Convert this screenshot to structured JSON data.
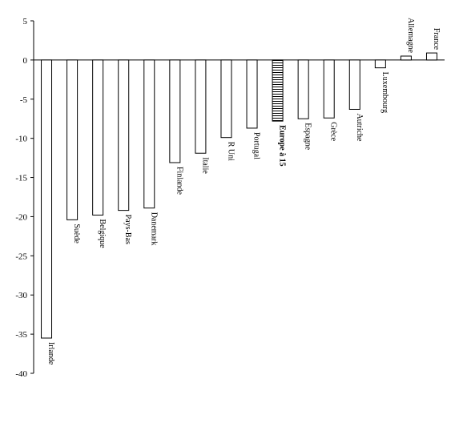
{
  "chart_data": {
    "type": "bar",
    "title": "",
    "xlabel": "",
    "ylabel": "",
    "ylim": [
      -40,
      5
    ],
    "yticks": [
      "5",
      "0",
      "-5",
      "-10",
      "-15",
      "-20",
      "-25",
      "-30",
      "-35",
      "-40"
    ],
    "grid": false,
    "legend": "none",
    "categories": [
      "Irlande",
      "Suède",
      "Belgique",
      "Pays-Bas",
      "Danemark",
      "Finlande",
      "Italie",
      "R Uni",
      "Portugal",
      "Europe à 15",
      "Espagne",
      "Grèce",
      "Autriche",
      "Luxembourg",
      "Allemagne",
      "France"
    ],
    "values": [
      -35.5,
      -20.4,
      -19.8,
      -19.2,
      -18.9,
      -13.1,
      -11.9,
      -9.9,
      -8.7,
      -7.8,
      -7.5,
      -7.4,
      -6.3,
      -1.0,
      0.5,
      0.9
    ],
    "highlight": "Europe à 15",
    "colors": {
      "bar_fill": "#ffffff",
      "bar_stroke": "#000000",
      "highlight_pattern": "horizontal-stripes"
    }
  }
}
